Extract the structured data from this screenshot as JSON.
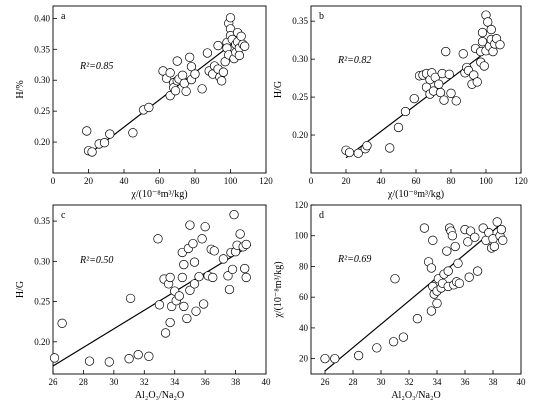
{
  "chart_data": [
    {
      "type": "scatter",
      "panel_label": "a",
      "annotation": "R²=0.85",
      "xlabel": "χ/(10⁻⁸m³/kg)",
      "ylabel": "H/%",
      "xlim": [
        0,
        120
      ],
      "ylim": [
        0.15,
        0.42
      ],
      "xticks": [
        "0",
        "20",
        "40",
        "60",
        "80",
        "100",
        "120"
      ],
      "yticks": [
        "0.20",
        "0.25",
        "0.30",
        "0.35",
        "0.40"
      ],
      "xtick_values": [
        0,
        20,
        40,
        60,
        80,
        100,
        120
      ],
      "ytick_values": [
        0.2,
        0.25,
        0.3,
        0.35,
        0.4
      ],
      "grid": false,
      "fit_line": [
        [
          20,
          0.18
        ],
        [
          106,
          0.37
        ]
      ],
      "points": [
        [
          19,
          0.218
        ],
        [
          20,
          0.186
        ],
        [
          22,
          0.184
        ],
        [
          26,
          0.197
        ],
        [
          29,
          0.199
        ],
        [
          32,
          0.213
        ],
        [
          45,
          0.215
        ],
        [
          51,
          0.252
        ],
        [
          54,
          0.256
        ],
        [
          62,
          0.315
        ],
        [
          64,
          0.303
        ],
        [
          66,
          0.312
        ],
        [
          66,
          0.275
        ],
        [
          68,
          0.296
        ],
        [
          68,
          0.288
        ],
        [
          69,
          0.283
        ],
        [
          70,
          0.331
        ],
        [
          70,
          0.299
        ],
        [
          71,
          0.302
        ],
        [
          73,
          0.308
        ],
        [
          74,
          0.295
        ],
        [
          75,
          0.282
        ],
        [
          77,
          0.337
        ],
        [
          78,
          0.322
        ],
        [
          78,
          0.301
        ],
        [
          80,
          0.31
        ],
        [
          84,
          0.286
        ],
        [
          87,
          0.344
        ],
        [
          88,
          0.315
        ],
        [
          90,
          0.31
        ],
        [
          91,
          0.323
        ],
        [
          93,
          0.356
        ],
        [
          93,
          0.318
        ],
        [
          94,
          0.305
        ],
        [
          95,
          0.299
        ],
        [
          96,
          0.313
        ],
        [
          97,
          0.33
        ],
        [
          98,
          0.361
        ],
        [
          98,
          0.352
        ],
        [
          99,
          0.392
        ],
        [
          99,
          0.341
        ],
        [
          100,
          0.401
        ],
        [
          100,
          0.383
        ],
        [
          100,
          0.372
        ],
        [
          101,
          0.366
        ],
        [
          102,
          0.335
        ],
        [
          103,
          0.358
        ],
        [
          103,
          0.345
        ],
        [
          104,
          0.362
        ],
        [
          104,
          0.377
        ],
        [
          105,
          0.352
        ],
        [
          105,
          0.34
        ],
        [
          106,
          0.371
        ],
        [
          107,
          0.358
        ],
        [
          108,
          0.355
        ]
      ]
    },
    {
      "type": "scatter",
      "panel_label": "b",
      "annotation": "R²=0.82",
      "xlabel": "χ/(10⁻⁸m³/kg)",
      "ylabel": "H/G",
      "xlim": [
        0,
        120
      ],
      "ylim": [
        0.15,
        0.37
      ],
      "xticks": [
        "0",
        "20",
        "40",
        "60",
        "80",
        "100",
        "120"
      ],
      "yticks": [
        "0.20",
        "0.25",
        "0.30",
        "0.35"
      ],
      "xtick_values": [
        0,
        20,
        40,
        60,
        80,
        100,
        120
      ],
      "ytick_values": [
        0.2,
        0.25,
        0.3,
        0.35
      ],
      "grid": false,
      "fit_line": [
        [
          20,
          0.17
        ],
        [
          106,
          0.32
        ]
      ],
      "points": [
        [
          20,
          0.18
        ],
        [
          22,
          0.177
        ],
        [
          27,
          0.176
        ],
        [
          31,
          0.182
        ],
        [
          32,
          0.186
        ],
        [
          45,
          0.183
        ],
        [
          50,
          0.21
        ],
        [
          54,
          0.231
        ],
        [
          59,
          0.248
        ],
        [
          62,
          0.278
        ],
        [
          64,
          0.279
        ],
        [
          66,
          0.281
        ],
        [
          66,
          0.263
        ],
        [
          68,
          0.273
        ],
        [
          68,
          0.254
        ],
        [
          69,
          0.282
        ],
        [
          70,
          0.258
        ],
        [
          71,
          0.276
        ],
        [
          73,
          0.267
        ],
        [
          74,
          0.256
        ],
        [
          75,
          0.281
        ],
        [
          76,
          0.246
        ],
        [
          77,
          0.31
        ],
        [
          79,
          0.28
        ],
        [
          80,
          0.255
        ],
        [
          83,
          0.245
        ],
        [
          87,
          0.307
        ],
        [
          88,
          0.282
        ],
        [
          89,
          0.289
        ],
        [
          90,
          0.285
        ],
        [
          92,
          0.267
        ],
        [
          93,
          0.279
        ],
        [
          94,
          0.314
        ],
        [
          95,
          0.27
        ],
        [
          97,
          0.31
        ],
        [
          97,
          0.296
        ],
        [
          98,
          0.335
        ],
        [
          98,
          0.323
        ],
        [
          99,
          0.291
        ],
        [
          100,
          0.358
        ],
        [
          100,
          0.311
        ],
        [
          101,
          0.349
        ],
        [
          102,
          0.317
        ],
        [
          103,
          0.339
        ],
        [
          103,
          0.326
        ],
        [
          104,
          0.31
        ],
        [
          105,
          0.32
        ],
        [
          106,
          0.327
        ],
        [
          108,
          0.319
        ]
      ]
    },
    {
      "type": "scatter",
      "panel_label": "c",
      "annotation": "R²=0.50",
      "xlabel": "Al₂O₃/Na₂O",
      "ylabel": "H/G",
      "xlim": [
        26,
        40
      ],
      "ylim": [
        0.16,
        0.37
      ],
      "xticks": [
        "26",
        "28",
        "30",
        "32",
        "34",
        "36",
        "38",
        "40"
      ],
      "yticks": [
        "0.20",
        "0.25",
        "0.30",
        "0.35"
      ],
      "xtick_values": [
        26,
        28,
        30,
        32,
        34,
        36,
        38,
        40
      ],
      "ytick_values": [
        0.2,
        0.25,
        0.3,
        0.35
      ],
      "grid": false,
      "fit_line": [
        [
          26,
          0.17
        ],
        [
          39,
          0.32
        ]
      ],
      "points": [
        [
          26.1,
          0.18
        ],
        [
          26.6,
          0.223
        ],
        [
          28.4,
          0.176
        ],
        [
          29.7,
          0.175
        ],
        [
          31.0,
          0.179
        ],
        [
          31.1,
          0.254
        ],
        [
          31.6,
          0.184
        ],
        [
          32.3,
          0.182
        ],
        [
          32.9,
          0.328
        ],
        [
          33.0,
          0.246
        ],
        [
          33.3,
          0.278
        ],
        [
          33.4,
          0.211
        ],
        [
          33.6,
          0.272
        ],
        [
          33.7,
          0.28
        ],
        [
          33.7,
          0.224
        ],
        [
          33.8,
          0.244
        ],
        [
          34.0,
          0.263
        ],
        [
          34.1,
          0.251
        ],
        [
          34.3,
          0.257
        ],
        [
          34.5,
          0.311
        ],
        [
          34.5,
          0.28
        ],
        [
          34.6,
          0.296
        ],
        [
          34.6,
          0.244
        ],
        [
          34.8,
          0.229
        ],
        [
          34.9,
          0.316
        ],
        [
          35.0,
          0.345
        ],
        [
          35.0,
          0.264
        ],
        [
          35.2,
          0.322
        ],
        [
          35.3,
          0.299
        ],
        [
          35.3,
          0.272
        ],
        [
          35.4,
          0.238
        ],
        [
          35.6,
          0.281
        ],
        [
          35.8,
          0.328
        ],
        [
          35.9,
          0.247
        ],
        [
          36.0,
          0.343
        ],
        [
          36.2,
          0.282
        ],
        [
          36.4,
          0.315
        ],
        [
          36.5,
          0.28
        ],
        [
          36.6,
          0.313
        ],
        [
          37.2,
          0.303
        ],
        [
          37.5,
          0.282
        ],
        [
          37.6,
          0.265
        ],
        [
          37.7,
          0.311
        ],
        [
          37.8,
          0.29
        ],
        [
          37.9,
          0.358
        ],
        [
          38.0,
          0.312
        ],
        [
          38.1,
          0.32
        ],
        [
          38.3,
          0.334
        ],
        [
          38.5,
          0.318
        ],
        [
          38.6,
          0.291
        ],
        [
          38.7,
          0.321
        ],
        [
          38.7,
          0.28
        ]
      ]
    },
    {
      "type": "scatter",
      "panel_label": "d",
      "annotation": "R²=0.69",
      "xlabel": "Al₂O₃/Na₂O",
      "ylabel": "χ/(10⁻⁸m³/kg)",
      "xlim": [
        25,
        40
      ],
      "ylim": [
        10,
        120
      ],
      "xticks": [
        "26",
        "28",
        "30",
        "32",
        "34",
        "36",
        "38",
        "40"
      ],
      "yticks": [
        "20",
        "40",
        "60",
        "80",
        "100",
        "120"
      ],
      "xtick_values": [
        26,
        28,
        30,
        32,
        34,
        36,
        38,
        40
      ],
      "ytick_values": [
        20,
        40,
        60,
        80,
        100,
        120
      ],
      "grid": false,
      "fit_line": [
        [
          26,
          12
        ],
        [
          38.5,
          107
        ]
      ],
      "points": [
        [
          26.0,
          20
        ],
        [
          26.7,
          20
        ],
        [
          28.4,
          22
        ],
        [
          29.7,
          27
        ],
        [
          30.9,
          31
        ],
        [
          31.0,
          72
        ],
        [
          31.6,
          34
        ],
        [
          32.6,
          46
        ],
        [
          33.1,
          105
        ],
        [
          33.4,
          83
        ],
        [
          33.6,
          79
        ],
        [
          33.6,
          51
        ],
        [
          33.7,
          97
        ],
        [
          33.7,
          67
        ],
        [
          33.8,
          62
        ],
        [
          34.0,
          56
        ],
        [
          34.0,
          64
        ],
        [
          34.1,
          72
        ],
        [
          34.3,
          66
        ],
        [
          34.4,
          69
        ],
        [
          34.5,
          75
        ],
        [
          34.7,
          90
        ],
        [
          34.8,
          67
        ],
        [
          34.8,
          77
        ],
        [
          34.9,
          105
        ],
        [
          35.0,
          103
        ],
        [
          35.1,
          100
        ],
        [
          35.2,
          68
        ],
        [
          35.3,
          93
        ],
        [
          35.4,
          70
        ],
        [
          35.5,
          82
        ],
        [
          35.6,
          69
        ],
        [
          36.0,
          104
        ],
        [
          36.2,
          96
        ],
        [
          36.3,
          73
        ],
        [
          36.4,
          103
        ],
        [
          36.7,
          99
        ],
        [
          36.9,
          77
        ],
        [
          37.3,
          105
        ],
        [
          37.5,
          97
        ],
        [
          37.7,
          102
        ],
        [
          37.9,
          92
        ],
        [
          38.0,
          98
        ],
        [
          38.1,
          93
        ],
        [
          38.3,
          109
        ],
        [
          38.5,
          100
        ],
        [
          38.6,
          104
        ],
        [
          38.7,
          97
        ]
      ]
    }
  ]
}
